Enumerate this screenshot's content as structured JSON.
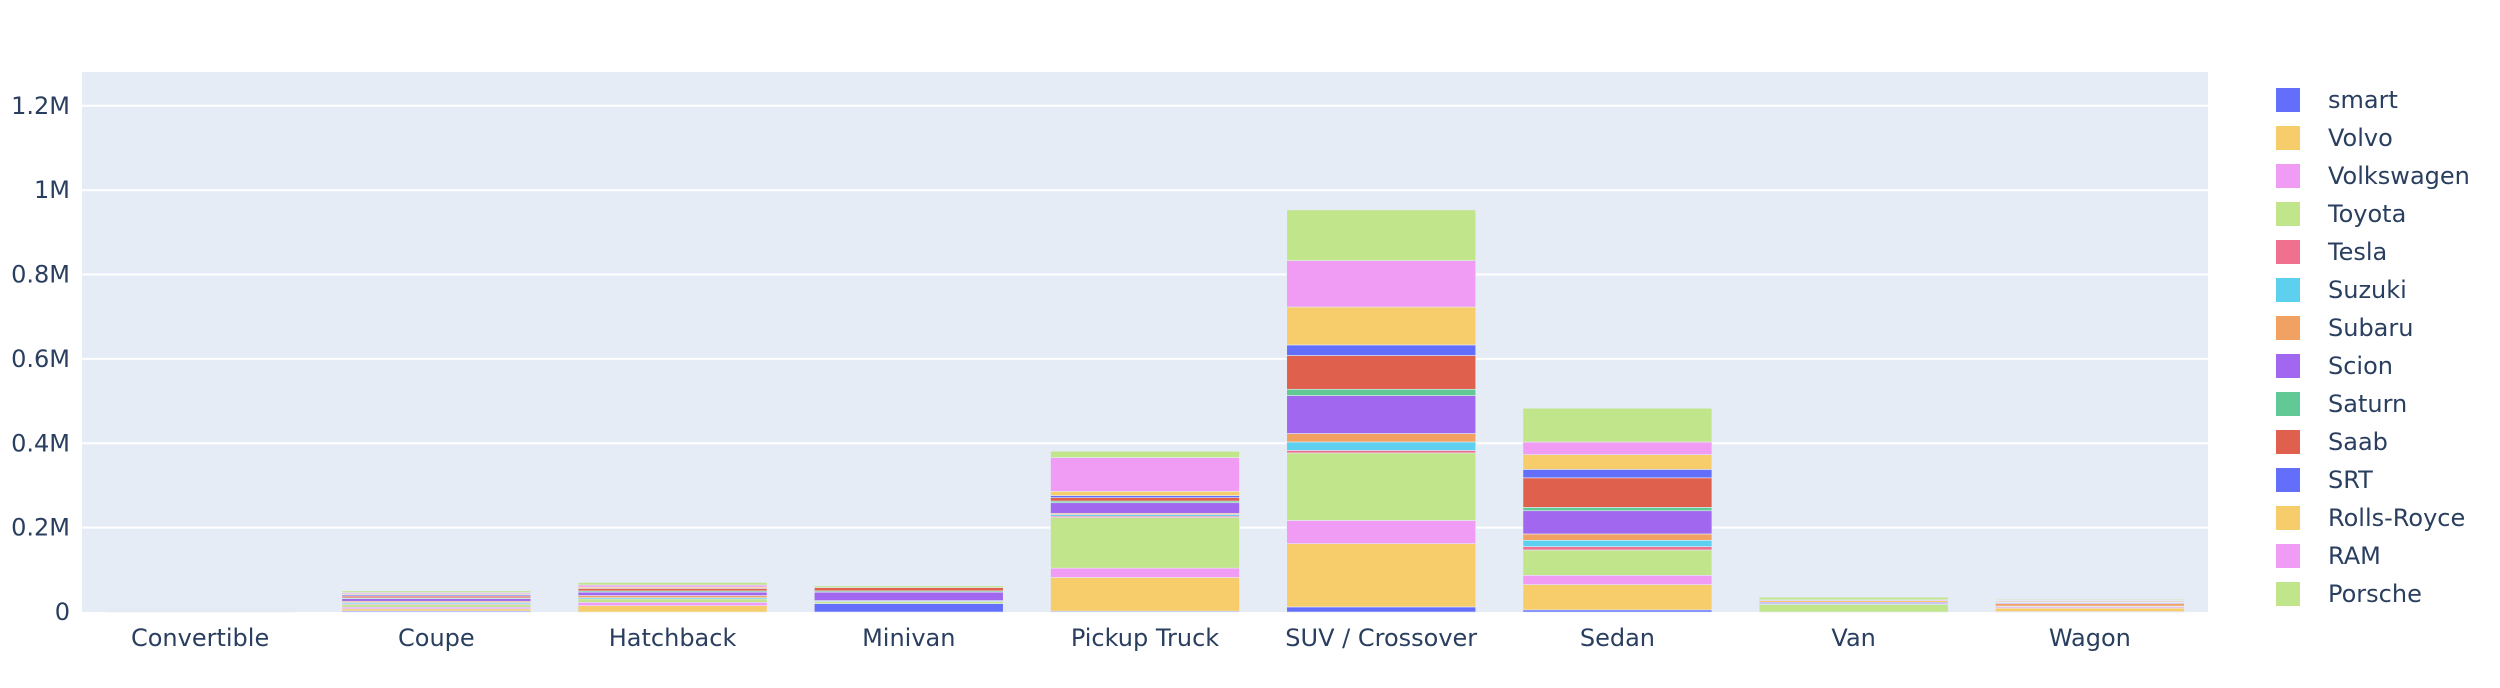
{
  "chart_data": {
    "type": "bar",
    "stacked": true,
    "title": "",
    "xlabel": "",
    "ylabel": "",
    "ylim": [
      0,
      1280000
    ],
    "yticks": [
      {
        "value": 0,
        "label": "0"
      },
      {
        "value": 200000,
        "label": "0.2M"
      },
      {
        "value": 400000,
        "label": "0.4M"
      },
      {
        "value": 600000,
        "label": "0.6M"
      },
      {
        "value": 800000,
        "label": "0.8M"
      },
      {
        "value": 1000000,
        "label": "1M"
      },
      {
        "value": 1200000,
        "label": "1.2M"
      }
    ],
    "grid": true,
    "legend_position": "right",
    "plot_background": "#e5ecf6",
    "categories": [
      "Convertible",
      "Coupe",
      "Hatchback",
      "Minivan",
      "Pickup Truck",
      "SUV / Crossover",
      "Sedan",
      "Van",
      "Wagon"
    ],
    "series": [
      {
        "name": "smart",
        "color": "#636efa",
        "values": [
          1500,
          2500,
          0,
          20000,
          2000,
          12000,
          5000,
          0,
          1000
        ]
      },
      {
        "name": "Volvo",
        "color": "#f7cd6b",
        "values": [
          1500,
          5000,
          15000,
          0,
          80000,
          150000,
          60000,
          0,
          8000
        ]
      },
      {
        "name": "Volkswagen",
        "color": "#f09cf4",
        "values": [
          1000,
          4000,
          8000,
          0,
          22000,
          55000,
          22000,
          0,
          3000
        ]
      },
      {
        "name": "Toyota",
        "color": "#c1e58a",
        "values": [
          2000,
          6000,
          8000,
          5000,
          120000,
          160000,
          60000,
          18000,
          2000
        ]
      },
      {
        "name": "Tesla",
        "color": "#f0718f",
        "values": [
          500,
          2000,
          0,
          0,
          3000,
          6000,
          8000,
          0,
          0
        ]
      },
      {
        "name": "Suzuki",
        "color": "#5dd0f0",
        "values": [
          500,
          3000,
          3000,
          2000,
          4000,
          20000,
          15000,
          2000,
          0
        ]
      },
      {
        "name": "Subaru",
        "color": "#f1a262",
        "values": [
          1000,
          3000,
          5000,
          0,
          3000,
          20000,
          15000,
          0,
          6000
        ]
      },
      {
        "name": "Scion",
        "color": "#a167ef",
        "values": [
          1500,
          6000,
          8000,
          20000,
          25000,
          90000,
          55000,
          3000,
          2000
        ]
      },
      {
        "name": "Saturn",
        "color": "#60c996",
        "values": [
          500,
          2000,
          3000,
          3000,
          4000,
          15000,
          8000,
          0,
          1000
        ]
      },
      {
        "name": "Saab",
        "color": "#e0604e",
        "values": [
          1000,
          4000,
          6000,
          8000,
          8000,
          80000,
          70000,
          0,
          2000
        ]
      },
      {
        "name": "SRT",
        "color": "#636efa",
        "values": [
          500,
          3000,
          0,
          0,
          5000,
          25000,
          20000,
          0,
          0
        ]
      },
      {
        "name": "Rolls-Royce",
        "color": "#f7cd6b",
        "values": [
          500,
          2500,
          3000,
          0,
          10000,
          90000,
          35000,
          4000,
          2000
        ]
      },
      {
        "name": "RAM",
        "color": "#f09cf4",
        "values": [
          1000,
          3000,
          5000,
          0,
          80000,
          110000,
          30000,
          2000,
          1000
        ]
      },
      {
        "name": "Porsche",
        "color": "#c1e58a",
        "values": [
          1000,
          4000,
          6000,
          4000,
          15000,
          120000,
          80000,
          6000,
          2000
        ]
      }
    ]
  }
}
